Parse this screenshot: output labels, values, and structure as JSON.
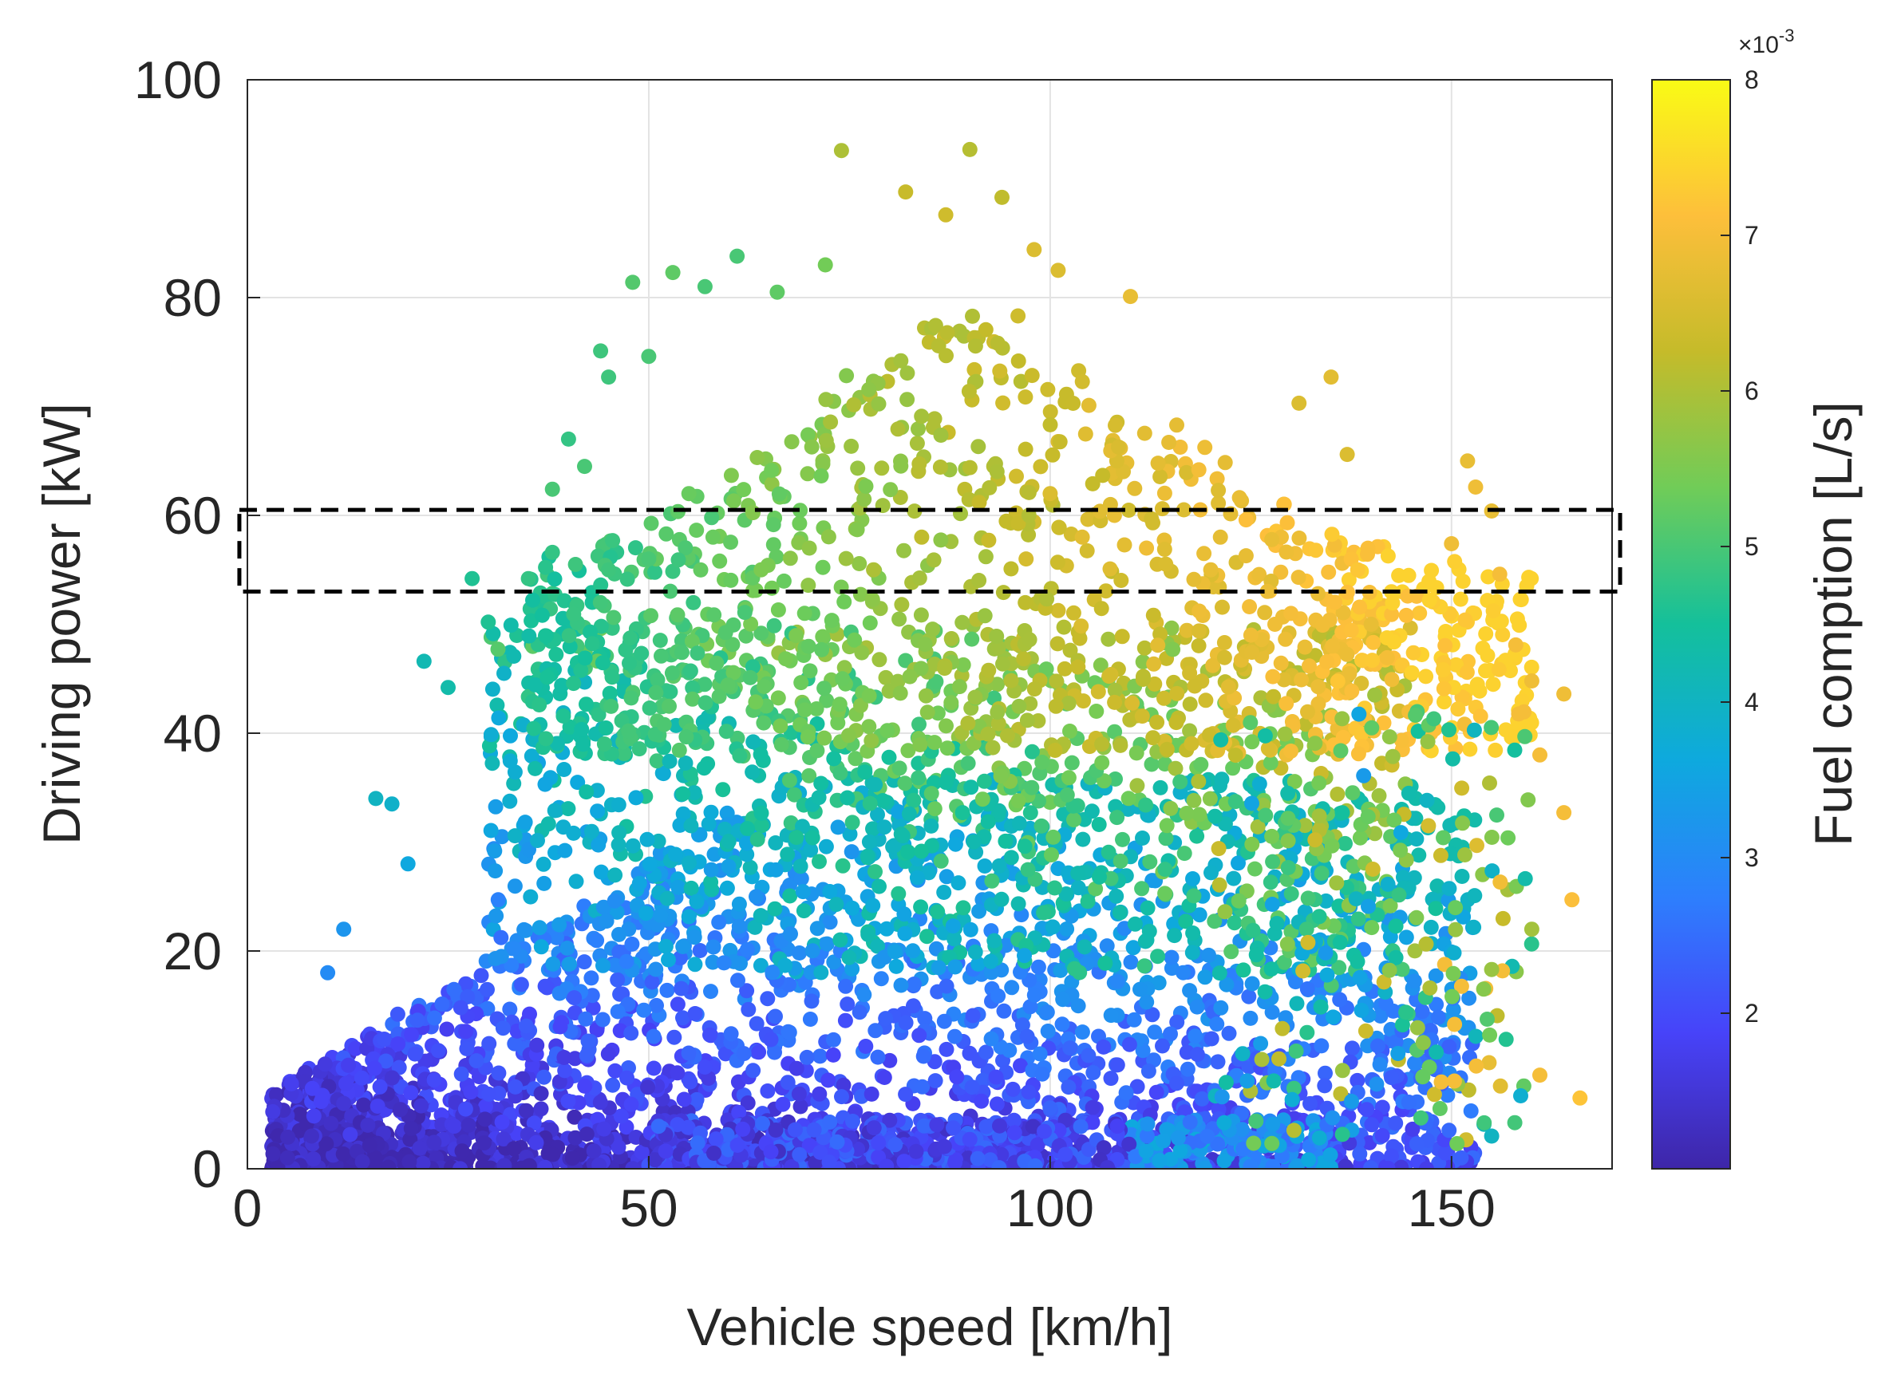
{
  "chart_data": {
    "type": "scatter",
    "title": "",
    "xlabel": "Vehicle speed [km/h]",
    "ylabel": "Driving power [kW]",
    "xlim": [
      0,
      170
    ],
    "ylim": [
      0,
      100
    ],
    "xticks": [
      0,
      50,
      100,
      150
    ],
    "yticks": [
      0,
      20,
      40,
      60,
      80,
      100
    ],
    "xtick_labels": [
      "0",
      "50",
      "100",
      "150"
    ],
    "ytick_labels": [
      "0",
      "20",
      "40",
      "60",
      "80",
      "100"
    ],
    "grid": true,
    "colorbar": {
      "label": "Fuel comption [L/s]",
      "range": [
        1,
        8
      ],
      "ticks": [
        2,
        3,
        4,
        5,
        6,
        7,
        8
      ],
      "tick_labels": [
        "2",
        "3",
        "4",
        "5",
        "6",
        "7",
        "8"
      ],
      "multiplier_label": "×10",
      "multiplier_exponent": "-3",
      "colormap": "parula",
      "colormap_stops": [
        "#3e26a8",
        "#4743f9",
        "#2d7ffd",
        "#0ea9de",
        "#14c09b",
        "#70cc58",
        "#c5bb2a",
        "#fdbf3b",
        "#f9fb15"
      ]
    },
    "highlight_region": {
      "x_range": [
        -1,
        171
      ],
      "y_range": [
        53,
        60.5
      ],
      "style": "dashed-rectangle"
    },
    "points": [
      [
        74,
        93.5,
        6.0
      ],
      [
        90,
        93.6,
        6.1
      ],
      [
        94,
        89.2,
        6.2
      ],
      [
        82,
        89.7,
        6.3
      ],
      [
        87,
        87.6,
        6.4
      ],
      [
        61,
        83.8,
        5.0
      ],
      [
        53,
        82.3,
        5.2
      ],
      [
        48,
        81.4,
        5.1
      ],
      [
        57,
        81.0,
        5.0
      ],
      [
        66,
        80.5,
        5.2
      ],
      [
        72,
        83.0,
        5.4
      ],
      [
        98,
        84.4,
        6.6
      ],
      [
        101,
        82.5,
        6.6
      ],
      [
        110,
        80.1,
        6.8
      ],
      [
        44,
        75.1,
        4.9
      ],
      [
        50,
        74.6,
        5.0
      ],
      [
        45,
        72.7,
        4.9
      ],
      [
        40,
        67.0,
        4.8
      ],
      [
        135,
        72.7,
        6.7
      ],
      [
        131,
        70.3,
        6.6
      ],
      [
        137,
        65.6,
        6.6
      ],
      [
        152,
        65.0,
        6.8
      ],
      [
        153,
        62.6,
        6.9
      ],
      [
        155,
        60.4,
        6.8
      ],
      [
        150,
        57.4,
        6.9
      ],
      [
        156,
        54.6,
        7.0
      ],
      [
        158,
        48.1,
        7.0
      ],
      [
        160,
        44.8,
        6.9
      ],
      [
        164,
        43.6,
        6.9
      ],
      [
        161,
        38.0,
        7.0
      ],
      [
        164,
        32.7,
        7.0
      ],
      [
        165,
        24.7,
        7.1
      ],
      [
        166,
        6.5,
        7.2
      ],
      [
        161,
        8.6,
        7.0
      ],
      [
        160,
        22.0,
        5.9
      ],
      [
        155,
        18.3,
        5.8
      ],
      [
        154,
        16.5,
        5.6
      ],
      [
        155,
        3.0,
        4.0
      ],
      [
        10,
        18.0,
        3.0
      ],
      [
        12,
        22.0,
        3.2
      ],
      [
        16,
        34.0,
        4.0
      ],
      [
        18,
        33.5,
        3.9
      ],
      [
        20,
        28.0,
        3.6
      ],
      [
        22,
        46.6,
        4.2
      ],
      [
        25,
        44.2,
        4.3
      ],
      [
        28,
        54.2,
        4.6
      ],
      [
        30,
        50.2,
        4.6
      ],
      [
        35,
        54.2,
        4.8
      ],
      [
        38,
        56.6,
        4.8
      ],
      [
        38,
        62.4,
        5.0
      ],
      [
        42,
        64.5,
        5.0
      ],
      [
        55,
        62.0,
        5.3
      ],
      [
        100,
        62.0,
        6.6
      ],
      [
        120,
        55.0,
        6.8
      ],
      [
        5,
        1.0,
        1.2
      ],
      [
        8,
        3.0,
        1.3
      ],
      [
        12,
        6.0,
        1.5
      ],
      [
        15,
        4.0,
        1.4
      ],
      [
        125,
        49.0,
        6.9
      ],
      [
        128,
        50.0,
        6.9
      ],
      [
        130,
        51.0,
        7.0
      ],
      [
        140,
        50.0,
        6.8
      ],
      [
        108,
        60.0,
        6.8
      ],
      [
        112,
        57.0,
        6.9
      ],
      [
        104,
        58.0,
        6.7
      ],
      [
        97,
        56.0,
        6.5
      ],
      [
        84,
        58.0,
        6.2
      ],
      [
        78,
        55.0,
        6.0
      ],
      [
        70,
        57.0,
        5.7
      ],
      [
        64,
        55.0,
        5.5
      ],
      [
        58,
        58.0,
        5.3
      ],
      [
        50,
        56.0,
        5.0
      ],
      [
        45,
        55.0,
        4.9
      ]
    ]
  }
}
